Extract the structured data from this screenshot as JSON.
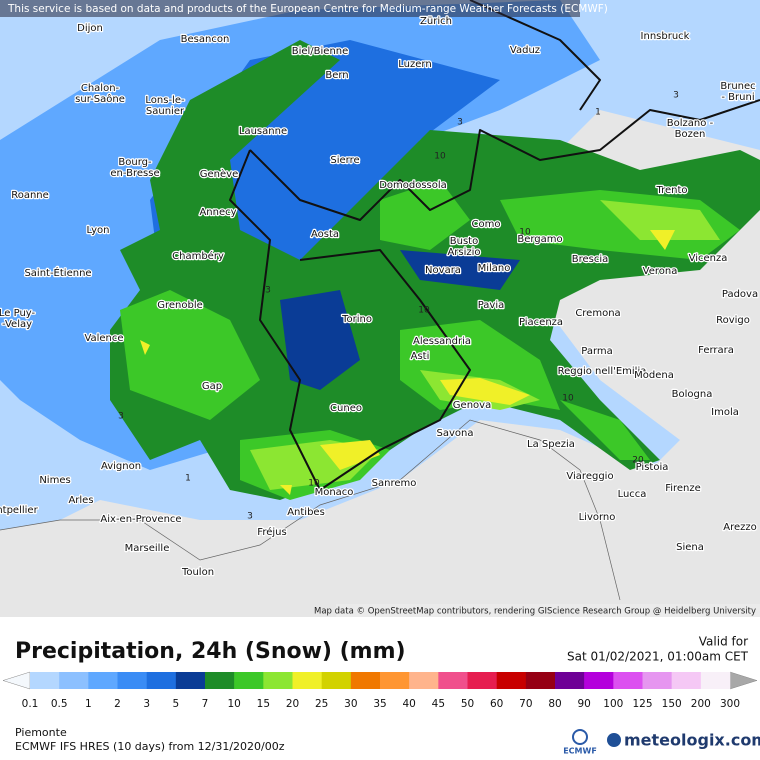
{
  "header": {
    "notice": "This service is based on data and products of the European Centre for Medium-range Weather Forecasts (ECMWF)"
  },
  "map": {
    "attribution": "Map data © OpenStreetMap contributors, rendering GIScience Research Group @ Heidelberg University",
    "cities": [
      [
        "Dijon"
      ],
      [
        "Besancon"
      ],
      [
        "Biel/Bienne"
      ],
      [
        "Zürich"
      ],
      [
        "Vaduz"
      ],
      [
        "Innsbruck"
      ],
      [
        "Bern"
      ],
      [
        "Luzern"
      ],
      [
        "Chalon-",
        "sur-Saône"
      ],
      [
        "Lons-le-",
        "Saunier"
      ],
      [
        "Lausanne"
      ],
      [
        "Sierre"
      ],
      [
        "Bolzano -",
        "Bozen"
      ],
      [
        "Brunec",
        "- Bruni"
      ],
      [
        "Bourg-",
        "en-Bresse"
      ],
      [
        "Genève"
      ],
      [
        "Domodossola"
      ],
      [
        "Trento"
      ],
      [
        "Roanne"
      ],
      [
        "Annecy"
      ],
      [
        "Como"
      ],
      [
        "Lyon"
      ],
      [
        "Aosta"
      ],
      [
        "Busto",
        "Arsizio"
      ],
      [
        "Bergamo"
      ],
      [
        "Chambéry"
      ],
      [
        "Saint-Étienne"
      ],
      [
        "Novara"
      ],
      [
        "Milano"
      ],
      [
        "Brescia"
      ],
      [
        "Verona"
      ],
      [
        "Vicenza"
      ],
      [
        "Padova"
      ],
      [
        "Le Puy-",
        "-Velay"
      ],
      [
        "Grenoble"
      ],
      [
        "Pavia"
      ],
      [
        "Cremona"
      ],
      [
        "Rovigo"
      ],
      [
        "Torino"
      ],
      [
        "Piacenza"
      ],
      [
        "Valence"
      ],
      [
        "Alessandria"
      ],
      [
        "Asti"
      ],
      [
        "Parma"
      ],
      [
        "Ferrara"
      ],
      [
        "Reggio nell'Emilia"
      ],
      [
        "Modena"
      ],
      [
        "Gap"
      ],
      [
        "Bologna"
      ],
      [
        "Genova"
      ],
      [
        "Cuneo"
      ],
      [
        "Imola"
      ],
      [
        "Savona"
      ],
      [
        "La Spezia"
      ],
      [
        "Pistoia"
      ],
      [
        "Avignon"
      ],
      [
        "Viareggio"
      ],
      [
        "Nimes"
      ],
      [
        "Sanremo"
      ],
      [
        "Monaco"
      ],
      [
        "Lucca"
      ],
      [
        "Firenze"
      ],
      [
        "Arles"
      ],
      [
        "Antibes"
      ],
      [
        "ntpellier"
      ],
      [
        "Aix-en-Provence"
      ],
      [
        "Livorno"
      ],
      [
        "Arezzo"
      ],
      [
        "Fréjus"
      ],
      [
        "Siena"
      ],
      [
        "Marseille"
      ],
      [
        "Toulon"
      ]
    ],
    "contour_labels": [
      10,
      3,
      1,
      3,
      10,
      3,
      10,
      3,
      1,
      10,
      10,
      20,
      3
    ]
  },
  "legend": {
    "title": "Precipitation, 24h (Snow) (mm)",
    "levels": [
      0.1,
      0.5,
      1,
      2,
      3,
      5,
      7,
      10,
      15,
      20,
      25,
      30,
      35,
      40,
      45,
      50,
      60,
      70,
      80,
      90,
      100,
      125,
      150,
      200,
      300
    ],
    "under_color": "#f4f8fc",
    "over_color": "#a8a8a8",
    "colors": [
      "#b4d7ff",
      "#8cc0ff",
      "#5fa8ff",
      "#3a8cf5",
      "#1e6fe0",
      "#0a3c96",
      "#1e8c28",
      "#3cc828",
      "#8ce632",
      "#f0f028",
      "#d2d200",
      "#f07800",
      "#ff9632",
      "#ffb48c",
      "#f0508c",
      "#e61e50",
      "#c80000",
      "#960014",
      "#6e0096",
      "#b400dc",
      "#dc50f0",
      "#e696f0",
      "#f5c8f5",
      "#f8f0f8"
    ]
  },
  "valid": {
    "label": "Valid for",
    "time": "Sat 01/02/2021, 01:00am CET"
  },
  "footer": {
    "region": "Piemonte",
    "model": "ECMWF IFS HRES (10 days) from 12/31/2020/00z",
    "ecmwf_logo": "ECMWF",
    "brand": "meteologix.com"
  }
}
